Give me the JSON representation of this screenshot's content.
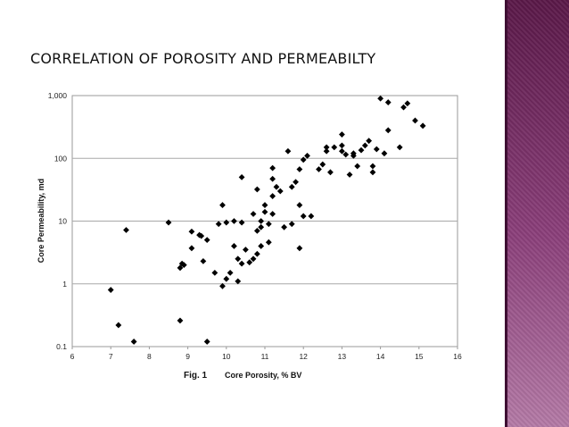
{
  "slide": {
    "title": "CORRELATION OF POROSITY AND PERMEABILTY",
    "figure_label": "Fig. 1",
    "accent_bar_color": "#8b3f7a"
  },
  "chart_data": {
    "type": "scatter",
    "title": "",
    "xlabel": "Core Porosity, % BV",
    "ylabel": "Core Permeability, md",
    "xlim": [
      6,
      16
    ],
    "ylim": [
      0.1,
      1000
    ],
    "y_scale": "log",
    "x_ticks": [
      "6",
      "7",
      "8",
      "9",
      "10",
      "11",
      "12",
      "13",
      "14",
      "15",
      "16"
    ],
    "y_ticks": [
      "0.1",
      "1",
      "10",
      "100",
      "1,000"
    ],
    "grid": "horizontal",
    "marker": "diamond",
    "marker_color": "#000000",
    "points": [
      [
        7.0,
        0.8
      ],
      [
        7.2,
        0.22
      ],
      [
        7.4,
        7.2
      ],
      [
        7.6,
        0.12
      ],
      [
        8.5,
        9.5
      ],
      [
        8.8,
        0.26
      ],
      [
        8.8,
        1.8
      ],
      [
        8.85,
        2.1
      ],
      [
        8.9,
        2.0
      ],
      [
        9.1,
        3.7
      ],
      [
        9.1,
        6.8
      ],
      [
        9.3,
        6.0
      ],
      [
        9.35,
        5.8
      ],
      [
        9.4,
        2.3
      ],
      [
        9.5,
        5.0
      ],
      [
        9.5,
        0.12
      ],
      [
        9.7,
        1.5
      ],
      [
        9.8,
        9.0
      ],
      [
        9.9,
        18.0
      ],
      [
        9.9,
        0.92
      ],
      [
        10.0,
        1.2
      ],
      [
        10.0,
        9.5
      ],
      [
        10.1,
        1.5
      ],
      [
        10.2,
        10.0
      ],
      [
        10.2,
        4.0
      ],
      [
        10.3,
        1.1
      ],
      [
        10.3,
        2.5
      ],
      [
        10.4,
        9.5
      ],
      [
        10.4,
        50.0
      ],
      [
        10.4,
        2.1
      ],
      [
        10.5,
        3.5
      ],
      [
        10.6,
        2.2
      ],
      [
        10.7,
        2.5
      ],
      [
        10.7,
        13.0
      ],
      [
        10.8,
        3.0
      ],
      [
        10.8,
        7.0
      ],
      [
        10.8,
        32.0
      ],
      [
        10.9,
        8.0
      ],
      [
        10.9,
        10.0
      ],
      [
        10.9,
        4.0
      ],
      [
        11.0,
        18.0
      ],
      [
        11.0,
        14.0
      ],
      [
        11.1,
        9.0
      ],
      [
        11.1,
        4.6
      ],
      [
        11.2,
        13.0
      ],
      [
        11.2,
        25.0
      ],
      [
        11.2,
        70.0
      ],
      [
        11.2,
        47.0
      ],
      [
        11.3,
        35.0
      ],
      [
        11.4,
        30.0
      ],
      [
        11.5,
        8.0
      ],
      [
        11.6,
        130.0
      ],
      [
        11.7,
        35.0
      ],
      [
        11.7,
        9.0
      ],
      [
        11.8,
        42.0
      ],
      [
        11.9,
        18.0
      ],
      [
        11.9,
        3.7
      ],
      [
        11.9,
        67.0
      ],
      [
        12.0,
        95.0
      ],
      [
        12.0,
        12.0
      ],
      [
        12.1,
        110.0
      ],
      [
        12.2,
        12.0
      ],
      [
        12.4,
        67.0
      ],
      [
        12.5,
        80.0
      ],
      [
        12.6,
        130.0
      ],
      [
        12.6,
        150.0
      ],
      [
        12.7,
        60.0
      ],
      [
        12.8,
        150.0
      ],
      [
        13.0,
        240.0
      ],
      [
        13.0,
        160.0
      ],
      [
        13.0,
        130.0
      ],
      [
        13.1,
        115.0
      ],
      [
        13.2,
        55.0
      ],
      [
        13.3,
        120.0
      ],
      [
        13.3,
        110.0
      ],
      [
        13.4,
        75.0
      ],
      [
        13.5,
        135.0
      ],
      [
        13.6,
        160.0
      ],
      [
        13.7,
        190.0
      ],
      [
        13.8,
        60.0
      ],
      [
        13.8,
        75.0
      ],
      [
        13.9,
        140.0
      ],
      [
        14.0,
        900.0
      ],
      [
        14.1,
        120.0
      ],
      [
        14.2,
        780.0
      ],
      [
        14.2,
        280.0
      ],
      [
        14.5,
        150.0
      ],
      [
        14.6,
        650.0
      ],
      [
        14.7,
        750.0
      ],
      [
        14.9,
        400.0
      ],
      [
        15.1,
        330.0
      ]
    ]
  }
}
